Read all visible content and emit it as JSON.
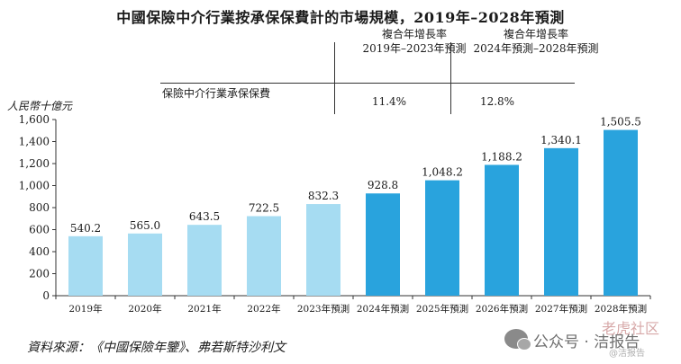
{
  "chart_data": {
    "type": "bar",
    "title": "中國保險中介行業按承保保費計的市場規模，2019年–2028年預測",
    "ylabel": "人民幣十億元",
    "xlabel": "",
    "series_label": "保險中介行業承保保費",
    "ylim": [
      0,
      1600
    ],
    "yticks": [
      0,
      200,
      400,
      600,
      800,
      1000,
      1200,
      1400,
      1600
    ],
    "ytick_labels": [
      "0",
      "200",
      "400",
      "600",
      "800",
      "1,000",
      "1,200",
      "1,400",
      "1,600"
    ],
    "categories": [
      "2019年",
      "2020年",
      "2021年",
      "2022年",
      "2023年預測",
      "2024年預測",
      "2025年預測",
      "2026年預測",
      "2027年預測",
      "2028年預測"
    ],
    "values": [
      540.2,
      565.0,
      643.5,
      722.5,
      832.3,
      928.8,
      1048.2,
      1188.2,
      1340.1,
      1505.5
    ],
    "value_labels": [
      "540.2",
      "565.0",
      "643.5",
      "722.5",
      "832.3",
      "928.8",
      "1,048.2",
      "1,188.2",
      "1,340.1",
      "1,505.5"
    ],
    "bar_colors": [
      "#a6dcf2",
      "#a6dcf2",
      "#a6dcf2",
      "#a6dcf2",
      "#a6dcf2",
      "#29a3dd",
      "#29a3dd",
      "#29a3dd",
      "#29a3dd",
      "#29a3dd"
    ],
    "cagr": [
      {
        "line1": "複合年增長率",
        "line2": "2019年–2023年預測",
        "value": "11.4%"
      },
      {
        "line1": "複合年增長率",
        "line2": "2024年預測–2028年預測",
        "value": "12.8%"
      }
    ],
    "source": "資料來源：《中國保險年鑒》、弗若斯特沙利文"
  },
  "watermark": {
    "main": "公众号 · 洁报告",
    "top": "老虎社区",
    "sub": "@洁报告"
  }
}
